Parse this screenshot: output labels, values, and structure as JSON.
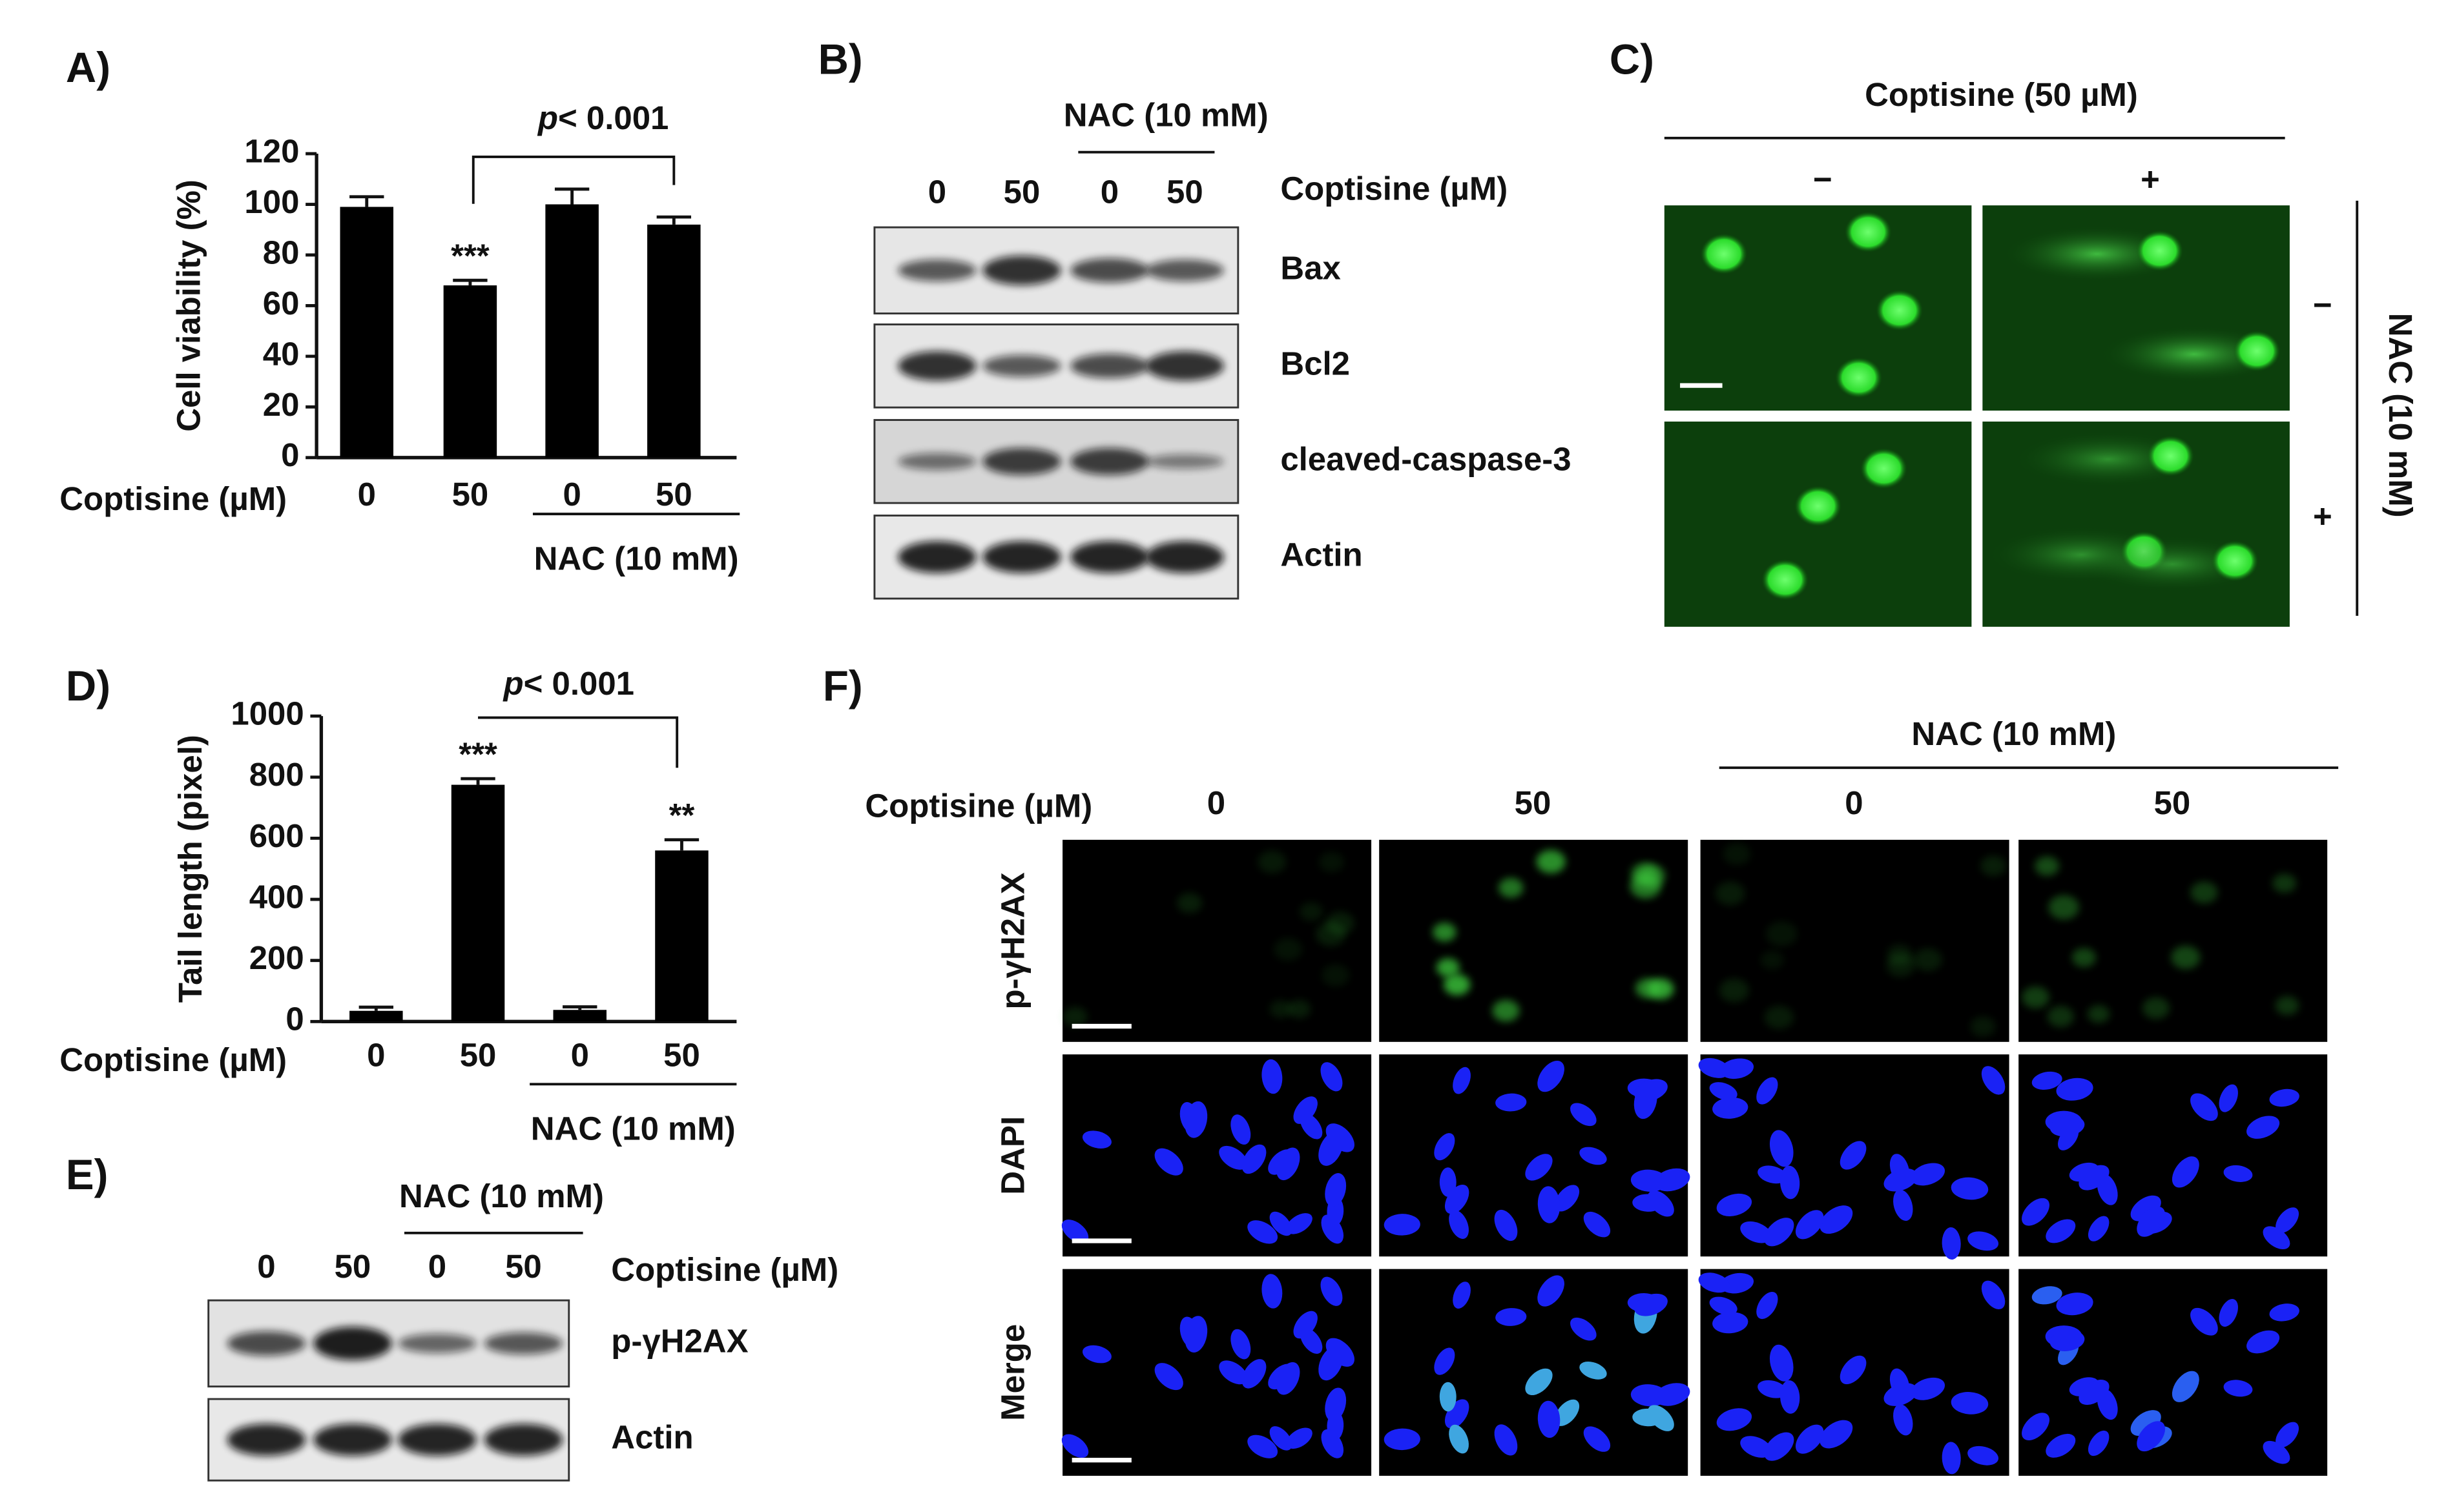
{
  "panels": {
    "A": "A)",
    "B": "B)",
    "C": "C)",
    "D": "D)",
    "E": "E)",
    "F": "F)"
  },
  "chart_data": [
    {
      "type": "bar",
      "ylabel": "Cell viability (%)",
      "x_row_label": "Coptisine (µM)",
      "group_label": "NAC (10 mM)",
      "categories": [
        "0",
        "50",
        "0",
        "50"
      ],
      "values": [
        99,
        68,
        100,
        92
      ],
      "errors": [
        4,
        2,
        6,
        3
      ],
      "significance": [
        null,
        "***",
        null,
        null
      ],
      "p_symbol": "p",
      "p_text": "< 0.001",
      "color": "#000000",
      "ylim": [
        0,
        120
      ],
      "yticks": [
        0,
        20,
        40,
        60,
        80,
        100,
        120
      ]
    },
    {
      "type": "bar",
      "ylabel": "Tail length (pixel)",
      "x_row_label": "Coptisine (µM)",
      "group_label": "NAC (10 mM)",
      "categories": [
        "0",
        "50",
        "0",
        "50"
      ],
      "values": [
        35,
        775,
        38,
        560
      ],
      "errors": [
        12,
        20,
        10,
        35
      ],
      "significance": [
        null,
        "***",
        null,
        "**"
      ],
      "p_symbol": "p",
      "p_text": "< 0.001",
      "color": "#000000",
      "ylim": [
        0,
        1000
      ],
      "yticks": [
        0,
        200,
        400,
        600,
        800,
        1000
      ]
    }
  ],
  "blot_B": {
    "group_label": "NAC (10 mM)",
    "lane_label": "Coptisine (µM)",
    "lanes": [
      "0",
      "50",
      "0",
      "50"
    ],
    "bands": [
      "Bax",
      "Bcl2",
      "cleaved-caspase-3",
      "Actin"
    ]
  },
  "comet_C": {
    "title": "Coptisine (50 µM)",
    "columns": [
      "−",
      "+"
    ],
    "rows": [
      "−",
      "+"
    ],
    "side_label": "NAC (10 mM)"
  },
  "blot_E": {
    "group_label": "NAC (10 mM)",
    "lane_label": "Coptisine (µM)",
    "lanes": [
      "0",
      "50",
      "0",
      "50"
    ],
    "bands": [
      "p-γH2AX",
      "Actin"
    ]
  },
  "if_F": {
    "group_label": "NAC (10 mM)",
    "lane_label": "Coptisine (µM)",
    "columns": [
      "0",
      "50",
      "0",
      "50"
    ],
    "rows": [
      "p-γH2AX",
      "DAPI",
      "Merge"
    ]
  }
}
